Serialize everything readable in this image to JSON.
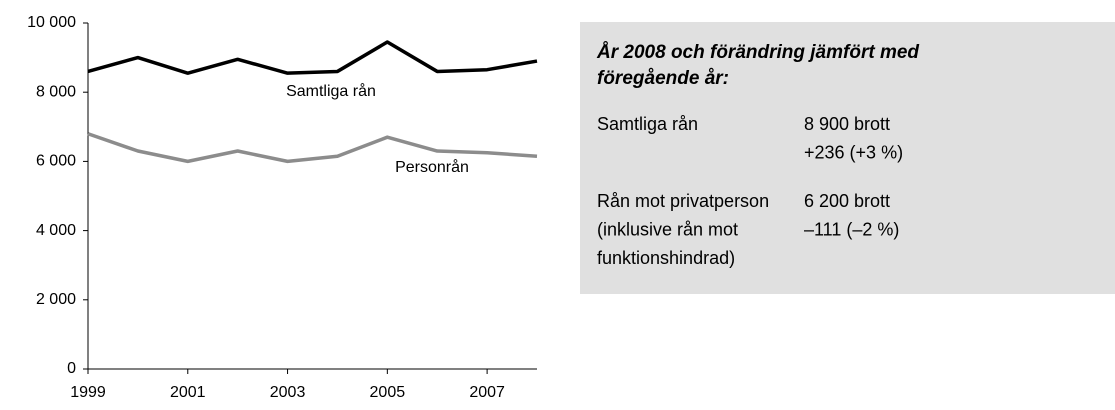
{
  "chart_data": {
    "type": "line",
    "x": [
      1999,
      2000,
      2001,
      2002,
      2003,
      2004,
      2005,
      2006,
      2007,
      2008
    ],
    "series": [
      {
        "name": "Samtliga rån",
        "color": "#000000",
        "values": [
          8600,
          9000,
          8550,
          8950,
          8550,
          8600,
          9450,
          8600,
          8650,
          8900
        ]
      },
      {
        "name": "Personrån",
        "color": "#8c8c8c",
        "values": [
          6800,
          6300,
          6000,
          6300,
          6000,
          6150,
          6700,
          6300,
          6250,
          6150
        ]
      }
    ],
    "xlim": [
      1999,
      2008
    ],
    "xticks": [
      1999,
      2001,
      2003,
      2005,
      2007
    ],
    "ylim": [
      0,
      10000
    ],
    "yticks": [
      0,
      {
        "value": 2000,
        "label": "2 000"
      },
      {
        "value": 4000,
        "label": "4 000"
      },
      {
        "value": 6000,
        "label": "6 000"
      },
      {
        "value": 8000,
        "label": "8 000"
      },
      {
        "value": 10000,
        "label": "10 000"
      }
    ],
    "grid": false
  },
  "panel": {
    "title": [
      "År 2008 och förändring jämfört med",
      "föregående år:"
    ],
    "rows": [
      {
        "label": [
          "Samtliga rån"
        ],
        "value": [
          "8 900 brott",
          "+236 (+3 %)"
        ]
      },
      {
        "label": [
          "Rån mot privatperson",
          "(inklusive rån mot",
          "funktionshindrad)"
        ],
        "value": [
          "6 200 brott",
          "–111 (–2 %)"
        ]
      }
    ]
  }
}
